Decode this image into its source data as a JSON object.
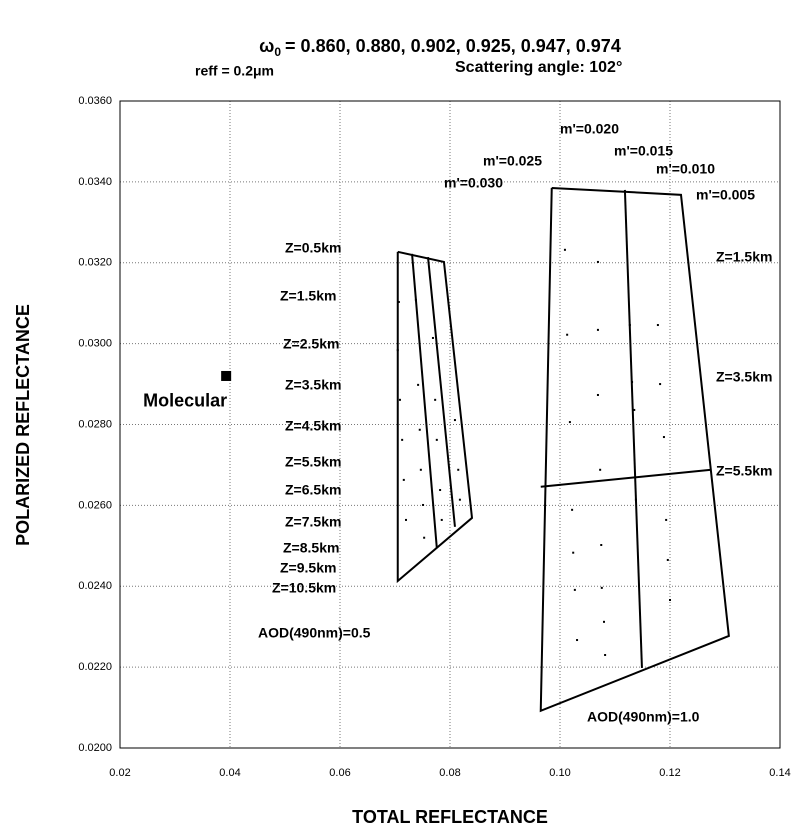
{
  "chart_data": {
    "type": "line",
    "title": {
      "symbol": "ω",
      "subscript": "0",
      "text": "= 0.860, 0.880, 0.902, 0.925, 0.947, 0.974"
    },
    "subtitles": [
      "reff = 0.2μm",
      "Scattering angle: 102°"
    ],
    "x_label": "TOTAL REFLECTANCE",
    "y_label": "POLARIZED REFLECTANCE",
    "xlim": [
      0.02,
      0.14
    ],
    "ylim": [
      0.02,
      0.036
    ],
    "xticks": [
      0.02,
      0.04,
      0.06,
      0.08,
      {
        "value": 0.1,
        "label": "0.10"
      },
      0.12,
      0.14
    ],
    "yticks": [
      {
        "value": 0.02,
        "label": "0.0200"
      },
      {
        "value": 0.022,
        "label": "0.0220"
      },
      {
        "value": 0.024,
        "label": "0.0240"
      },
      {
        "value": 0.026,
        "label": "0.0260"
      },
      {
        "value": 0.028,
        "label": "0.0280"
      },
      {
        "value": 0.03,
        "label": "0.0300"
      },
      {
        "value": 0.032,
        "label": "0.0320"
      },
      {
        "value": 0.034,
        "label": "0.0340"
      },
      {
        "value": 0.036,
        "label": "0.0360"
      }
    ],
    "grid": true,
    "series": [
      {
        "type": "line",
        "color": "#000000",
        "x": [
          0.0705,
          0.0789,
          0.084,
          0.0705,
          0.0705
        ],
        "values": [
          0.03227,
          0.03202,
          0.02569,
          0.02413,
          0.03227
        ]
      },
      {
        "type": "line",
        "color": "#000000",
        "x": [
          0.0731,
          0.0776
        ],
        "values": [
          0.03222,
          0.02495
        ]
      },
      {
        "type": "line",
        "color": "#000000",
        "x": [
          0.076,
          0.0809
        ],
        "values": [
          0.03214,
          0.02547
        ]
      },
      {
        "type": "line",
        "color": "#000000",
        "x": [
          0.0985,
          0.122,
          0.1307,
          0.0965,
          0.0985
        ],
        "values": [
          0.03385,
          0.03368,
          0.02277,
          0.02092,
          0.03385
        ]
      },
      {
        "type": "line",
        "color": "#000000",
        "x": [
          0.1118,
          0.1149
        ],
        "values": [
          0.0338,
          0.02198
        ]
      },
      {
        "type": "line",
        "color": "#000000",
        "x": [
          0.0965,
          0.1275
        ],
        "values": [
          0.02646,
          0.02688
        ]
      },
      {
        "type": "scatter",
        "color": "#000000",
        "x": [
          0.0707,
          0.0705,
          0.0709,
          0.0713,
          0.0716,
          0.072,
          0.0738,
          0.0742,
          0.0745,
          0.0747,
          0.0751,
          0.0753,
          0.0769,
          0.0773,
          0.0776,
          0.0782,
          0.0785,
          0.0809,
          0.0815,
          0.0818,
          0.1009,
          0.1013,
          0.1018,
          0.1022,
          0.1024,
          0.1027,
          0.1031,
          0.1069,
          0.1069,
          0.1069,
          0.1073,
          0.1075,
          0.1076,
          0.108,
          0.1082,
          0.1127,
          0.1131,
          0.1135,
          0.1138,
          0.1178,
          0.1182,
          0.1189,
          0.1193,
          0.1196,
          0.12
        ],
        "values": [
          0.03103,
          0.02984,
          0.02861,
          0.02762,
          0.02663,
          0.02564,
          0.03108,
          0.02898,
          0.02787,
          0.02688,
          0.02601,
          0.0252,
          0.03014,
          0.02861,
          0.02762,
          0.02638,
          0.02564,
          0.02811,
          0.02688,
          0.02614,
          0.03232,
          0.03022,
          0.02806,
          0.02589,
          0.02483,
          0.02391,
          0.02267,
          0.03202,
          0.03034,
          0.02873,
          0.02688,
          0.02502,
          0.02396,
          0.02312,
          0.0223,
          0.03046,
          0.02905,
          0.02836,
          0.02614,
          0.03046,
          0.029,
          0.02769,
          0.02564,
          0.02465,
          0.02366
        ]
      },
      {
        "type": "marker",
        "name": "Molecular",
        "color": "#000000",
        "x": [
          0.0393
        ],
        "values": [
          0.0292
        ]
      }
    ],
    "annotations": [
      "m'=0.020",
      "m'=0.015",
      "m'=0.025",
      "m'=0.010",
      "m'=0.030",
      "m'=0.005",
      "Z=0.5km",
      "Z=1.5km",
      "Z=2.5km",
      "Z=3.5km",
      "Z=4.5km",
      "Z=5.5km",
      "Z=6.5km",
      "Z=7.5km",
      "Z=8.5km",
      "Z=9.5km",
      "Z=10.5km",
      "Z=1.5km",
      "Z=3.5km",
      "Z=5.5km",
      "AOD(490nm)=0.5",
      "AOD(490nm)=1.0"
    ]
  }
}
